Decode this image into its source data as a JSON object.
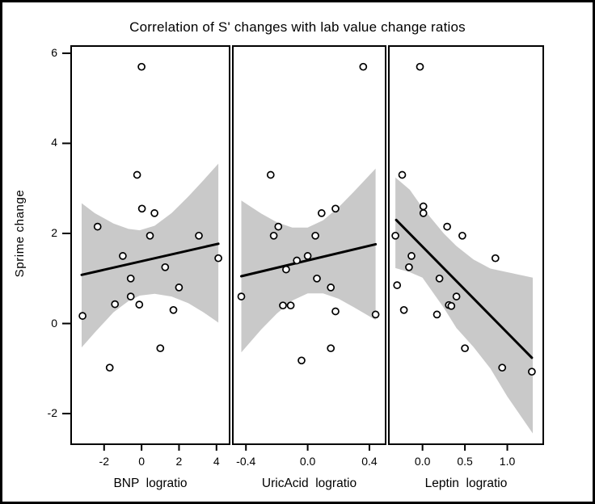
{
  "chart_data": {
    "type": "scatter",
    "title": "Correlation of S' changes with lab value change ratios",
    "ylabel": "Sprime change",
    "ylim": [
      -2.68,
      6.16
    ],
    "yticks": [
      {
        "value": 6,
        "label": "6"
      },
      {
        "value": 4,
        "label": "4"
      },
      {
        "value": 2,
        "label": "2"
      },
      {
        "value": 0,
        "label": "0"
      },
      {
        "value": -2,
        "label": "-2"
      }
    ],
    "grid": false,
    "legend": "none",
    "band_color": "#c9c9c9",
    "line_color": "#000000",
    "marker": {
      "shape": "open-circle",
      "radius": 4,
      "fill": "#ffffff",
      "stroke": "#000000"
    },
    "panels": [
      {
        "xlabel": "BNP  logratio",
        "xlim": [
          -3.76,
          4.7
        ],
        "xticks": [
          {
            "value": -2,
            "label": "-2"
          },
          {
            "value": 0,
            "label": "0"
          },
          {
            "value": 2,
            "label": "2"
          },
          {
            "value": 4,
            "label": "4"
          }
        ],
        "points": [
          [
            0.0,
            5.7
          ],
          [
            -0.24,
            3.3
          ],
          [
            0.02,
            2.55
          ],
          [
            0.69,
            2.45
          ],
          [
            -2.35,
            2.15
          ],
          [
            0.45,
            1.95
          ],
          [
            3.06,
            1.95
          ],
          [
            -1.0,
            1.5
          ],
          [
            4.1,
            1.45
          ],
          [
            1.26,
            1.25
          ],
          [
            -0.58,
            1.0
          ],
          [
            2.0,
            0.8
          ],
          [
            -0.58,
            0.6
          ],
          [
            -1.42,
            0.43
          ],
          [
            -0.12,
            0.42
          ],
          [
            1.7,
            0.3
          ],
          [
            -3.15,
            0.17
          ],
          [
            1.0,
            -0.55
          ],
          [
            -1.7,
            -0.98
          ]
        ],
        "regression": {
          "x": [
            -3.2,
            4.1
          ],
          "y": [
            1.08,
            1.77
          ]
        },
        "band": [
          [
            -3.2,
            -0.53,
            2.67
          ],
          [
            -2.5,
            -0.2,
            2.45
          ],
          [
            -1.5,
            0.25,
            2.22
          ],
          [
            -0.7,
            0.5,
            2.1
          ],
          [
            -0.1,
            0.62,
            2.07
          ],
          [
            0.7,
            0.66,
            2.17
          ],
          [
            1.6,
            0.6,
            2.45
          ],
          [
            2.5,
            0.45,
            2.82
          ],
          [
            3.3,
            0.25,
            3.18
          ],
          [
            4.1,
            0.02,
            3.55
          ]
        ]
      },
      {
        "xlabel": "UricAcid  logratio",
        "xlim": [
          -0.485,
          0.505
        ],
        "xticks": [
          {
            "value": -0.4,
            "label": "-0.4"
          },
          {
            "value": 0,
            "label": "0.0"
          },
          {
            "value": 0.4,
            "label": "0.4"
          }
        ],
        "points": [
          [
            0.36,
            5.7
          ],
          [
            -0.24,
            3.3
          ],
          [
            0.18,
            2.55
          ],
          [
            0.09,
            2.45
          ],
          [
            -0.19,
            2.15
          ],
          [
            -0.22,
            1.95
          ],
          [
            0.05,
            1.95
          ],
          [
            0.0,
            1.5
          ],
          [
            -0.07,
            1.4
          ],
          [
            -0.14,
            1.2
          ],
          [
            0.06,
            1.0
          ],
          [
            0.15,
            0.8
          ],
          [
            -0.43,
            0.6
          ],
          [
            -0.16,
            0.4
          ],
          [
            -0.11,
            0.4
          ],
          [
            0.18,
            0.27
          ],
          [
            0.44,
            0.2
          ],
          [
            0.15,
            -0.55
          ],
          [
            -0.04,
            -0.82
          ]
        ],
        "regression": {
          "x": [
            -0.43,
            0.44
          ],
          "y": [
            1.05,
            1.76
          ]
        },
        "band": [
          [
            -0.43,
            -0.64,
            2.73
          ],
          [
            -0.3,
            -0.13,
            2.44
          ],
          [
            -0.2,
            0.22,
            2.25
          ],
          [
            -0.1,
            0.51,
            2.13
          ],
          [
            0.0,
            0.67,
            2.13
          ],
          [
            0.1,
            0.67,
            2.29
          ],
          [
            0.2,
            0.55,
            2.58
          ],
          [
            0.3,
            0.36,
            2.93
          ],
          [
            0.44,
            0.08,
            3.44
          ]
        ]
      },
      {
        "xlabel": "Leptin  logratio",
        "xlim": [
          -0.397,
          1.424
        ],
        "xticks": [
          {
            "value": 0,
            "label": "0.0"
          },
          {
            "value": 0.5,
            "label": "0.5"
          },
          {
            "value": 1.0,
            "label": "1.0"
          }
        ],
        "points": [
          [
            -0.03,
            5.7
          ],
          [
            -0.24,
            3.3
          ],
          [
            0.01,
            2.6
          ],
          [
            0.01,
            2.45
          ],
          [
            0.29,
            2.15
          ],
          [
            -0.32,
            1.95
          ],
          [
            0.47,
            1.95
          ],
          [
            -0.13,
            1.5
          ],
          [
            0.86,
            1.45
          ],
          [
            -0.16,
            1.25
          ],
          [
            0.2,
            1.0
          ],
          [
            -0.3,
            0.85
          ],
          [
            0.4,
            0.6
          ],
          [
            0.31,
            0.41
          ],
          [
            0.34,
            0.39
          ],
          [
            -0.22,
            0.3
          ],
          [
            0.17,
            0.2
          ],
          [
            0.5,
            -0.55
          ],
          [
            0.94,
            -0.98
          ],
          [
            1.29,
            -1.07
          ]
        ],
        "regression": {
          "x": [
            -0.31,
            1.29
          ],
          "y": [
            2.3,
            -0.76
          ]
        },
        "band": [
          [
            -0.32,
            1.23,
            3.24
          ],
          [
            -0.15,
            1.14,
            2.97
          ],
          [
            0.0,
            1.02,
            2.57
          ],
          [
            0.25,
            0.35,
            2.0
          ],
          [
            0.4,
            -0.1,
            1.72
          ],
          [
            0.6,
            -0.52,
            1.42
          ],
          [
            0.8,
            -1.0,
            1.22
          ],
          [
            1.0,
            -1.62,
            1.14
          ],
          [
            1.3,
            -2.44,
            1.02
          ]
        ]
      }
    ]
  }
}
